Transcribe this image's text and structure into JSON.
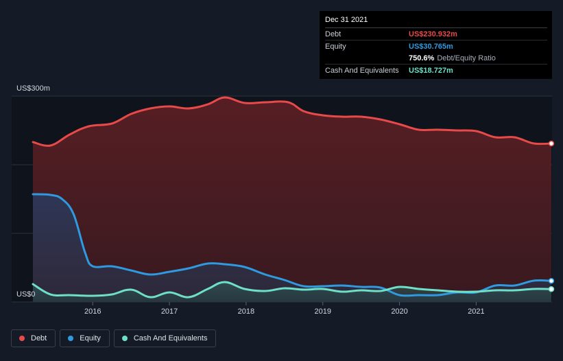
{
  "chart_data": {
    "type": "area",
    "title": "",
    "xlabel": "",
    "ylabel": "",
    "y_axis_label_top": "US$300m",
    "y_axis_label_bottom": "US$0",
    "ylim": [
      0,
      300
    ],
    "xlim": [
      2015.22,
      2021.98
    ],
    "x_ticks": [
      2016,
      2017,
      2018,
      2019,
      2020,
      2021
    ],
    "x_tick_labels": [
      "2016",
      "2017",
      "2018",
      "2019",
      "2020",
      "2021"
    ],
    "series": [
      {
        "name": "Debt",
        "color": "#e84a4a",
        "x": [
          2015.22,
          2015.45,
          2015.7,
          2015.95,
          2016.25,
          2016.5,
          2016.75,
          2017.0,
          2017.25,
          2017.5,
          2017.72,
          2017.98,
          2018.25,
          2018.55,
          2018.75,
          2019.0,
          2019.25,
          2019.5,
          2019.75,
          2020.0,
          2020.25,
          2020.5,
          2020.75,
          2021.0,
          2021.25,
          2021.5,
          2021.75,
          2021.98
        ],
        "values": [
          233,
          228,
          244,
          256,
          260,
          274,
          282,
          285,
          282,
          288,
          298,
          290,
          291,
          291,
          278,
          272,
          270,
          270,
          266,
          259,
          251,
          251,
          250,
          249,
          240,
          240,
          231,
          230.932
        ]
      },
      {
        "name": "Equity",
        "color": "#2f9ae0",
        "x": [
          2015.22,
          2015.45,
          2015.6,
          2015.75,
          2015.9,
          2016.0,
          2016.25,
          2016.5,
          2016.75,
          2017.0,
          2017.25,
          2017.5,
          2017.72,
          2017.98,
          2018.25,
          2018.5,
          2018.75,
          2019.0,
          2019.25,
          2019.5,
          2019.75,
          2020.0,
          2020.25,
          2020.5,
          2020.75,
          2021.0,
          2021.25,
          2021.5,
          2021.75,
          2021.98
        ],
        "values": [
          157,
          156,
          150,
          128,
          72,
          52,
          52,
          46,
          40,
          44,
          49,
          56,
          55,
          51,
          40,
          32,
          23,
          23,
          24,
          22,
          21,
          10,
          10,
          10,
          14,
          14,
          24,
          24,
          31,
          30.765
        ]
      },
      {
        "name": "Cash And Equivalents",
        "color": "#6fe0c8",
        "x": [
          2015.22,
          2015.45,
          2015.7,
          2016.0,
          2016.25,
          2016.5,
          2016.75,
          2017.0,
          2017.25,
          2017.5,
          2017.72,
          2017.98,
          2018.25,
          2018.5,
          2018.75,
          2019.0,
          2019.25,
          2019.5,
          2019.75,
          2020.0,
          2020.25,
          2020.5,
          2020.75,
          2021.0,
          2021.25,
          2021.5,
          2021.75,
          2021.98
        ],
        "values": [
          26,
          11,
          10,
          9,
          11,
          18,
          7,
          14,
          7,
          19,
          29,
          19,
          16,
          20,
          18,
          19,
          15,
          17,
          16,
          22,
          19,
          17,
          15,
          15,
          17,
          17,
          19,
          18.727
        ]
      }
    ],
    "tooltip": {
      "date": "Dec 31 2021",
      "rows": [
        {
          "label": "Debt",
          "value": "US$230.932m"
        },
        {
          "label": "Equity",
          "value": "US$30.765m"
        },
        {
          "label": "",
          "value": "750.6%",
          "suffix": "Debt/Equity Ratio"
        },
        {
          "label": "Cash And Equivalents",
          "value": "US$18.727m"
        }
      ]
    },
    "legend": [
      "Debt",
      "Equity",
      "Cash And Equivalents"
    ],
    "legend_position": "bottom-left"
  }
}
